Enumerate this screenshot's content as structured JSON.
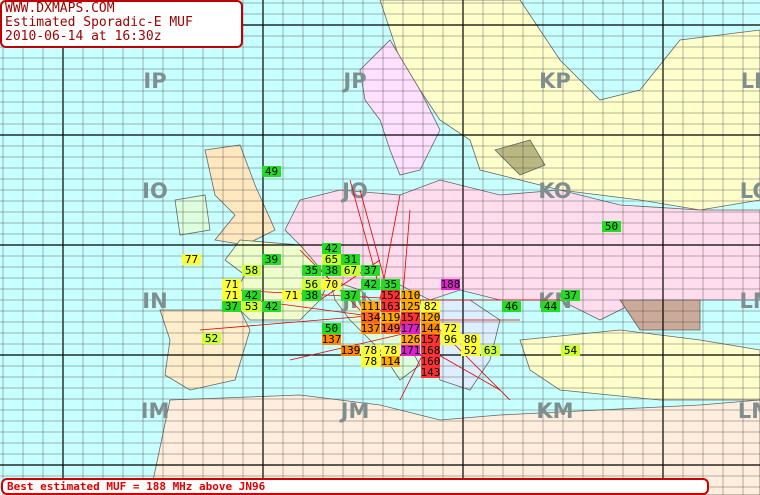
{
  "header": {
    "site": "WWW.DXMAPS.COM",
    "title": "Estimated Sporadic-E MUF",
    "timestamp": "2010-06-14 at 16:30z"
  },
  "fields": [
    "IP",
    "JP",
    "KP",
    "LP",
    "IO",
    "JO",
    "KO",
    "LO",
    "IN",
    "JN",
    "KN",
    "LN",
    "IM",
    "JM",
    "KM",
    "LM"
  ],
  "markers": [
    {
      "value": 49,
      "color": "#22dd22"
    },
    {
      "value": 77,
      "color": "#ffff33"
    },
    {
      "value": 42,
      "color": "#22dd22"
    },
    {
      "value": 65,
      "color": "#ccff33"
    },
    {
      "value": 31,
      "color": "#22dd22"
    },
    {
      "value": 39,
      "color": "#22dd22"
    },
    {
      "value": 58,
      "color": "#ccff33"
    },
    {
      "value": 35,
      "color": "#22dd22"
    },
    {
      "value": 38,
      "color": "#22dd22"
    },
    {
      "value": 67,
      "color": "#ccff33"
    },
    {
      "value": 37,
      "color": "#22dd22"
    },
    {
      "value": 50,
      "color": "#22dd22"
    },
    {
      "value": 71,
      "color": "#ffff33"
    },
    {
      "value": 56,
      "color": "#ccff33"
    },
    {
      "value": 70,
      "color": "#ffff33"
    },
    {
      "value": 42,
      "color": "#22dd22"
    },
    {
      "value": 35,
      "color": "#22dd22"
    },
    {
      "value": 188,
      "color": "#dd22cc"
    },
    {
      "value": 71,
      "color": "#ffff33"
    },
    {
      "value": 42,
      "color": "#22dd22"
    },
    {
      "value": 71,
      "color": "#ffff33"
    },
    {
      "value": 38,
      "color": "#22dd22"
    },
    {
      "value": 37,
      "color": "#22dd22"
    },
    {
      "value": 152,
      "color": "#ff3333"
    },
    {
      "value": 110,
      "color": "#ffaa00"
    },
    {
      "value": 37,
      "color": "#22dd22"
    },
    {
      "value": 37,
      "color": "#22dd22"
    },
    {
      "value": 53,
      "color": "#ccff33"
    },
    {
      "value": 42,
      "color": "#22dd22"
    },
    {
      "value": 111,
      "color": "#ffaa00"
    },
    {
      "value": 163,
      "color": "#ff3333"
    },
    {
      "value": 125,
      "color": "#ffaa00"
    },
    {
      "value": 82,
      "color": "#ffff33"
    },
    {
      "value": 46,
      "color": "#22dd22"
    },
    {
      "value": 44,
      "color": "#22dd22"
    },
    {
      "value": 52,
      "color": "#ccff33"
    },
    {
      "value": 134,
      "color": "#ff6622"
    },
    {
      "value": 119,
      "color": "#ffaa00"
    },
    {
      "value": 157,
      "color": "#ff3333"
    },
    {
      "value": 120,
      "color": "#ffaa00"
    },
    {
      "value": 50,
      "color": "#22dd22"
    },
    {
      "value": 137,
      "color": "#ff8800"
    },
    {
      "value": 149,
      "color": "#ff6622"
    },
    {
      "value": 177,
      "color": "#dd22cc"
    },
    {
      "value": 144,
      "color": "#ff8800"
    },
    {
      "value": 72,
      "color": "#ffff33"
    },
    {
      "value": 137,
      "color": "#ff8800"
    },
    {
      "value": 126,
      "color": "#ffaa00"
    },
    {
      "value": 157,
      "color": "#ff3333"
    },
    {
      "value": 96,
      "color": "#ffff33"
    },
    {
      "value": 80,
      "color": "#ffff33"
    },
    {
      "value": 139,
      "color": "#ff8800"
    },
    {
      "value": 78,
      "color": "#ffff33"
    },
    {
      "value": 78,
      "color": "#ffff33"
    },
    {
      "value": 171,
      "color": "#dd22cc"
    },
    {
      "value": 168,
      "color": "#ff3333"
    },
    {
      "value": 52,
      "color": "#ffff33"
    },
    {
      "value": 63,
      "color": "#ccff33"
    },
    {
      "value": 54,
      "color": "#ccff33"
    },
    {
      "value": 78,
      "color": "#ffff33"
    },
    {
      "value": 114,
      "color": "#ffaa00"
    },
    {
      "value": 160,
      "color": "#ff3333"
    },
    {
      "value": 143,
      "color": "#ff3333"
    }
  ],
  "footer": "Best estimated MUF = 188 MHz above JN96"
}
